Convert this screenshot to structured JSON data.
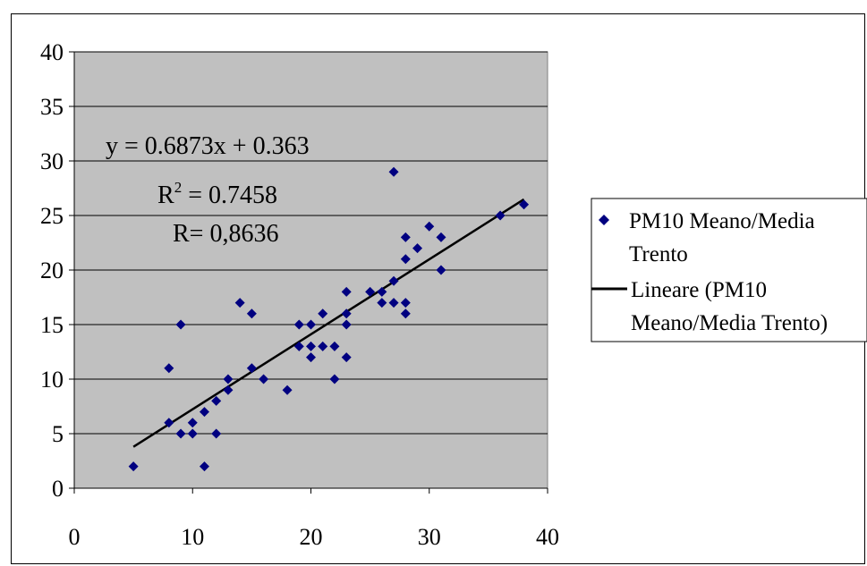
{
  "chart_data": {
    "type": "scatter",
    "xlim": [
      0,
      40
    ],
    "ylim": [
      0,
      40
    ],
    "x_ticks": [
      0,
      10,
      20,
      30,
      40
    ],
    "y_ticks": [
      0,
      5,
      10,
      15,
      20,
      25,
      30,
      35,
      40
    ],
    "grid": "horizontal",
    "plot_background": "#c0c0c0",
    "legend_position": "right",
    "series": [
      {
        "name": "PM10 Meano/Media Trento",
        "legend_lines": [
          "PM10 Meano/Media",
          "Trento"
        ],
        "marker": "diamond",
        "color": "#000080",
        "points": [
          [
            5,
            2
          ],
          [
            8,
            11
          ],
          [
            8,
            6
          ],
          [
            9,
            15
          ],
          [
            9,
            5
          ],
          [
            10,
            6
          ],
          [
            10,
            5
          ],
          [
            11,
            7
          ],
          [
            11,
            2
          ],
          [
            12,
            8
          ],
          [
            12,
            5
          ],
          [
            13,
            10
          ],
          [
            13,
            9
          ],
          [
            14,
            17
          ],
          [
            15,
            16
          ],
          [
            15,
            11
          ],
          [
            16,
            10
          ],
          [
            18,
            9
          ],
          [
            19,
            15
          ],
          [
            19,
            13
          ],
          [
            20,
            15
          ],
          [
            20,
            13
          ],
          [
            20,
            12
          ],
          [
            21,
            16
          ],
          [
            21,
            13
          ],
          [
            22,
            13
          ],
          [
            22,
            10
          ],
          [
            23,
            18
          ],
          [
            23,
            16
          ],
          [
            23,
            15
          ],
          [
            23,
            12
          ],
          [
            25,
            18
          ],
          [
            26,
            18
          ],
          [
            26,
            17
          ],
          [
            27,
            29
          ],
          [
            27,
            19
          ],
          [
            27,
            17
          ],
          [
            28,
            23
          ],
          [
            28,
            21
          ],
          [
            28,
            17
          ],
          [
            28,
            16
          ],
          [
            29,
            22
          ],
          [
            30,
            24
          ],
          [
            31,
            23
          ],
          [
            31,
            20
          ],
          [
            36,
            25
          ],
          [
            38,
            26
          ]
        ]
      },
      {
        "name": "Lineare (PM10 Meano/Media Trento)",
        "legend_lines": [
          "Lineare (PM10",
          "Meano/Media Trento)"
        ],
        "type": "trendline",
        "color": "#000000",
        "slope": 0.6873,
        "intercept": 0.363,
        "x_range": [
          5,
          38
        ]
      }
    ],
    "annotations": {
      "equation": "y = 0.6873x + 0.363",
      "r2_prefix": "R",
      "r2_sup": "2",
      "r2_value": " = 0.7458",
      "r_text": "R= 0,8636"
    }
  }
}
